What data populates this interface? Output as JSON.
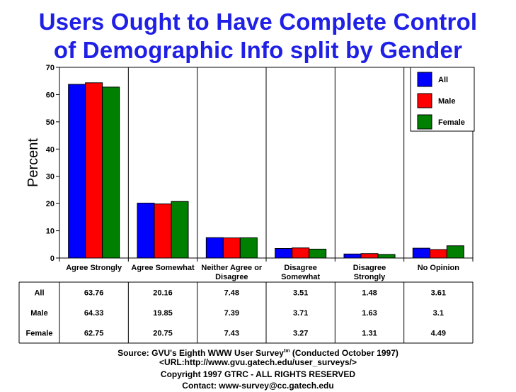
{
  "title_line1": "Users Ought to Have Complete Control",
  "title_line2": "of Demographic Info split by Gender",
  "chart_data": {
    "type": "bar",
    "categories": [
      "Agree Strongly",
      "Agree Somewhat",
      "Neither Agree or Disagree",
      "Disagree Somewhat",
      "Disagree Strongly",
      "No Opinion"
    ],
    "category_label_lines": [
      [
        "Agree Strongly"
      ],
      [
        "Agree Somewhat"
      ],
      [
        "Neither Agree or",
        "Disagree"
      ],
      [
        "Disagree",
        "Somewhat"
      ],
      [
        "Disagree",
        "Strongly"
      ],
      [
        "No Opinion"
      ]
    ],
    "series": [
      {
        "name": "All",
        "color": "#0000ff",
        "values": [
          63.76,
          20.16,
          7.48,
          3.51,
          1.48,
          3.61
        ],
        "labels": [
          "63.76",
          "20.16",
          "7.48",
          "3.51",
          "1.48",
          "3.61"
        ]
      },
      {
        "name": "Male",
        "color": "#ff0000",
        "values": [
          64.33,
          19.85,
          7.39,
          3.71,
          1.63,
          3.1
        ],
        "labels": [
          "64.33",
          "19.85",
          "7.39",
          "3.71",
          "1.63",
          "3.1"
        ]
      },
      {
        "name": "Female",
        "color": "#008000",
        "values": [
          62.75,
          20.75,
          7.43,
          3.27,
          1.31,
          4.49
        ],
        "labels": [
          "62.75",
          "20.75",
          "7.43",
          "3.27",
          "1.31",
          "4.49"
        ]
      }
    ],
    "ylabel": "Percent",
    "ylim": [
      0,
      70
    ],
    "yticks": [
      0,
      10,
      20,
      30,
      40,
      50,
      60,
      70
    ],
    "grid": "vertical category separators",
    "legend_position": "top-right"
  },
  "footer": {
    "source_prefix": "Source: GVU's Eighth WWW User Survey",
    "source_sup": "tm",
    "source_suffix": " (Conducted October 1997)",
    "url": "<URL:http://www.gvu.gatech.edu/user_surveys/>",
    "copyright": "Copyright 1997 GTRC - ALL RIGHTS RESERVED",
    "contact": "Contact: www-survey@cc.gatech.edu"
  }
}
